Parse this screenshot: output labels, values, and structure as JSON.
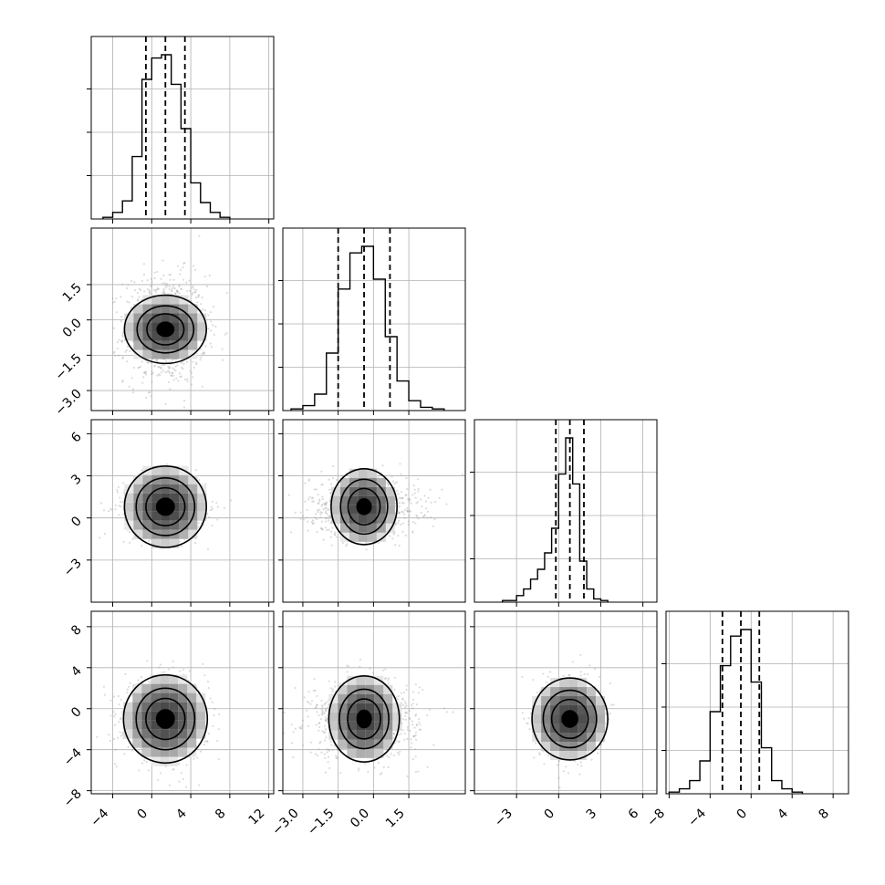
{
  "chart_data": {
    "type": "corner",
    "grid": true,
    "parameters": [
      {
        "median": 1.4,
        "q16": -0.6,
        "q84": 3.4,
        "range": [
          -6.2,
          12.5
        ],
        "ticks": [
          -4,
          0,
          4,
          8,
          12
        ],
        "tick_labels": [
          "−4",
          "0",
          "4",
          "8",
          "12"
        ],
        "histogram": {
          "edges": [
            -5.0,
            -4.0,
            -3.0,
            -2.0,
            -1.0,
            0.0,
            1.0,
            2.0,
            3.0,
            4.0,
            5.0,
            6.0,
            7.0,
            8.0
          ],
          "counts": [
            0.01,
            0.04,
            0.11,
            0.38,
            0.85,
            0.98,
            1.0,
            0.82,
            0.55,
            0.22,
            0.1,
            0.04,
            0.01
          ]
        },
        "hist_y_ticks": [
          0.25,
          0.5,
          0.75
        ]
      },
      {
        "median": -0.4,
        "q16": -1.5,
        "q84": 0.7,
        "range": [
          -3.85,
          3.9
        ],
        "ticks": [
          -3.0,
          -1.5,
          0.0,
          1.5
        ],
        "tick_labels": [
          "−3.0",
          "−1.5",
          "0.0",
          "1.5"
        ],
        "histogram": {
          "edges": [
            -3.5,
            -3.0,
            -2.5,
            -2.0,
            -1.5,
            -1.0,
            -0.5,
            0.0,
            0.5,
            1.0,
            1.5,
            2.0,
            2.5,
            3.0
          ],
          "counts": [
            0.01,
            0.03,
            0.1,
            0.35,
            0.74,
            0.96,
            1.0,
            0.8,
            0.45,
            0.18,
            0.06,
            0.02,
            0.01
          ]
        },
        "hist_y_ticks": [
          0.25,
          0.5,
          0.75
        ]
      },
      {
        "median": 0.8,
        "q16": -0.2,
        "q84": 1.8,
        "range": [
          -6.0,
          7.0
        ],
        "ticks": [
          -3,
          0,
          3,
          6
        ],
        "tick_labels": [
          "−3",
          "0",
          "3",
          "6"
        ],
        "histogram": {
          "edges": [
            -4.0,
            -3.0,
            -2.5,
            -2.0,
            -1.5,
            -1.0,
            -0.5,
            0.0,
            0.5,
            1.0,
            1.5,
            2.0,
            2.5,
            3.0,
            3.5
          ],
          "counts": [
            0.01,
            0.04,
            0.08,
            0.14,
            0.2,
            0.3,
            0.45,
            0.78,
            1.0,
            0.72,
            0.25,
            0.08,
            0.02,
            0.01
          ]
        },
        "hist_y_ticks": [
          0.25,
          0.5,
          0.75
        ]
      },
      {
        "median": -1.0,
        "q16": -2.8,
        "q84": 0.8,
        "range": [
          -8.3,
          9.5
        ],
        "ticks": [
          -8,
          -4,
          0,
          4,
          8
        ],
        "tick_labels": [
          "−8",
          "−4",
          "0",
          "4",
          "8"
        ],
        "histogram": {
          "edges": [
            -8.0,
            -7.0,
            -6.0,
            -5.0,
            -4.0,
            -3.0,
            -2.0,
            -1.0,
            0.0,
            1.0,
            2.0,
            3.0,
            4.0,
            5.0
          ],
          "counts": [
            0.01,
            0.03,
            0.08,
            0.2,
            0.5,
            0.78,
            0.96,
            1.0,
            0.68,
            0.28,
            0.08,
            0.03,
            0.01
          ]
        },
        "hist_y_ticks": [
          0.25,
          0.5,
          0.75
        ]
      }
    ],
    "contours": [
      {
        "x": 0,
        "y": 1,
        "radii": [
          [
            4.2,
            1.45
          ],
          [
            2.9,
            1.0
          ],
          [
            1.9,
            0.66
          ],
          [
            0.85,
            0.3
          ]
        ]
      },
      {
        "x": 0,
        "y": 2,
        "radii": [
          [
            4.2,
            2.9
          ],
          [
            3.0,
            2.05
          ],
          [
            2.0,
            1.35
          ],
          [
            0.9,
            0.6
          ]
        ]
      },
      {
        "x": 1,
        "y": 2,
        "radii": [
          [
            1.4,
            2.7
          ],
          [
            1.0,
            1.95
          ],
          [
            0.68,
            1.3
          ],
          [
            0.3,
            0.55
          ]
        ]
      },
      {
        "x": 0,
        "y": 3,
        "radii": [
          [
            4.3,
            4.3
          ],
          [
            3.0,
            3.0
          ],
          [
            2.0,
            2.0
          ],
          [
            0.9,
            0.9
          ]
        ]
      },
      {
        "x": 1,
        "y": 3,
        "radii": [
          [
            1.5,
            4.2
          ],
          [
            1.05,
            2.9
          ],
          [
            0.7,
            1.95
          ],
          [
            0.3,
            0.85
          ]
        ]
      },
      {
        "x": 2,
        "y": 3,
        "radii": [
          [
            2.7,
            4.0
          ],
          [
            1.9,
            2.8
          ],
          [
            1.3,
            1.9
          ],
          [
            0.55,
            0.8
          ]
        ]
      }
    ]
  }
}
